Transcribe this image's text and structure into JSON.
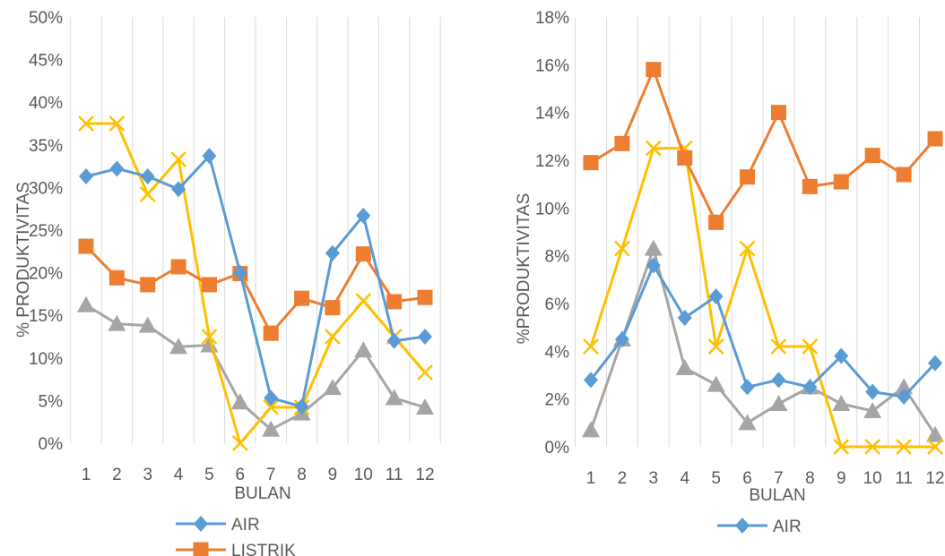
{
  "chart_data": [
    {
      "type": "line",
      "categories": [
        "1",
        "2",
        "3",
        "4",
        "5",
        "6",
        "7",
        "8",
        "9",
        "10",
        "11",
        "12"
      ],
      "xlabel": "BULAN",
      "ylabel": "% PRODUKTIVITAS",
      "ylim": [
        0,
        50
      ],
      "y_unit": "%",
      "yticks": [
        "0%",
        "5%",
        "10%",
        "15%",
        "20%",
        "25%",
        "30%",
        "35%",
        "40%",
        "45%",
        "50%"
      ],
      "grid": "vertical",
      "legend_position": "bottom",
      "series": [
        {
          "name": "AIR",
          "color": "#5B9BD5",
          "marker": "diamond",
          "values": [
            31.3,
            32.2,
            31.3,
            29.8,
            33.7,
            20.0,
            5.3,
            4.3,
            22.3,
            26.7,
            12.0,
            12.5
          ]
        },
        {
          "name": "LISTRIK",
          "color": "#ED7D31",
          "marker": "square",
          "values": [
            23.1,
            19.4,
            18.6,
            20.7,
            18.6,
            19.9,
            12.9,
            17.0,
            15.9,
            22.2,
            16.6,
            17.1
          ]
        },
        {
          "name": "",
          "color": "#A5A5A5",
          "marker": "triangle",
          "values": [
            16.2,
            14.0,
            13.8,
            11.3,
            11.5,
            4.8,
            1.6,
            3.5,
            6.5,
            10.9,
            5.3,
            4.2
          ]
        },
        {
          "name": "",
          "color": "#FFC000",
          "marker": "x",
          "values": [
            37.5,
            37.5,
            29.2,
            33.3,
            12.5,
            0.0,
            4.2,
            4.2,
            12.5,
            16.7,
            12.5,
            8.3
          ]
        }
      ]
    },
    {
      "type": "line",
      "categories": [
        "1",
        "2",
        "3",
        "4",
        "5",
        "6",
        "7",
        "8",
        "9",
        "10",
        "11",
        "12"
      ],
      "xlabel": "BULAN",
      "ylabel": "%PRODUKTIVITAS",
      "ylim": [
        0,
        18
      ],
      "y_unit": "%",
      "yticks": [
        "0%",
        "2%",
        "4%",
        "6%",
        "8%",
        "10%",
        "12%",
        "14%",
        "16%",
        "18%"
      ],
      "grid": "vertical",
      "legend_position": "bottom",
      "series": [
        {
          "name": "AIR",
          "color": "#5B9BD5",
          "marker": "diamond",
          "values": [
            2.8,
            4.5,
            7.6,
            5.4,
            6.3,
            2.5,
            2.8,
            2.5,
            3.8,
            2.3,
            2.1,
            3.5
          ]
        },
        {
          "name": "",
          "color": "#ED7D31",
          "marker": "square",
          "values": [
            11.9,
            12.7,
            15.8,
            12.1,
            9.4,
            11.3,
            14.0,
            10.9,
            11.1,
            12.2,
            11.4,
            12.9
          ]
        },
        {
          "name": "",
          "color": "#A5A5A5",
          "marker": "triangle",
          "values": [
            0.7,
            4.5,
            8.3,
            3.3,
            2.6,
            1.0,
            1.8,
            2.5,
            1.8,
            1.5,
            2.5,
            0.5
          ]
        },
        {
          "name": "",
          "color": "#FFC000",
          "marker": "x",
          "values": [
            4.2,
            8.3,
            12.5,
            12.5,
            4.2,
            8.3,
            4.2,
            4.2,
            0.0,
            0.0,
            0.0,
            0.0
          ]
        }
      ]
    }
  ]
}
